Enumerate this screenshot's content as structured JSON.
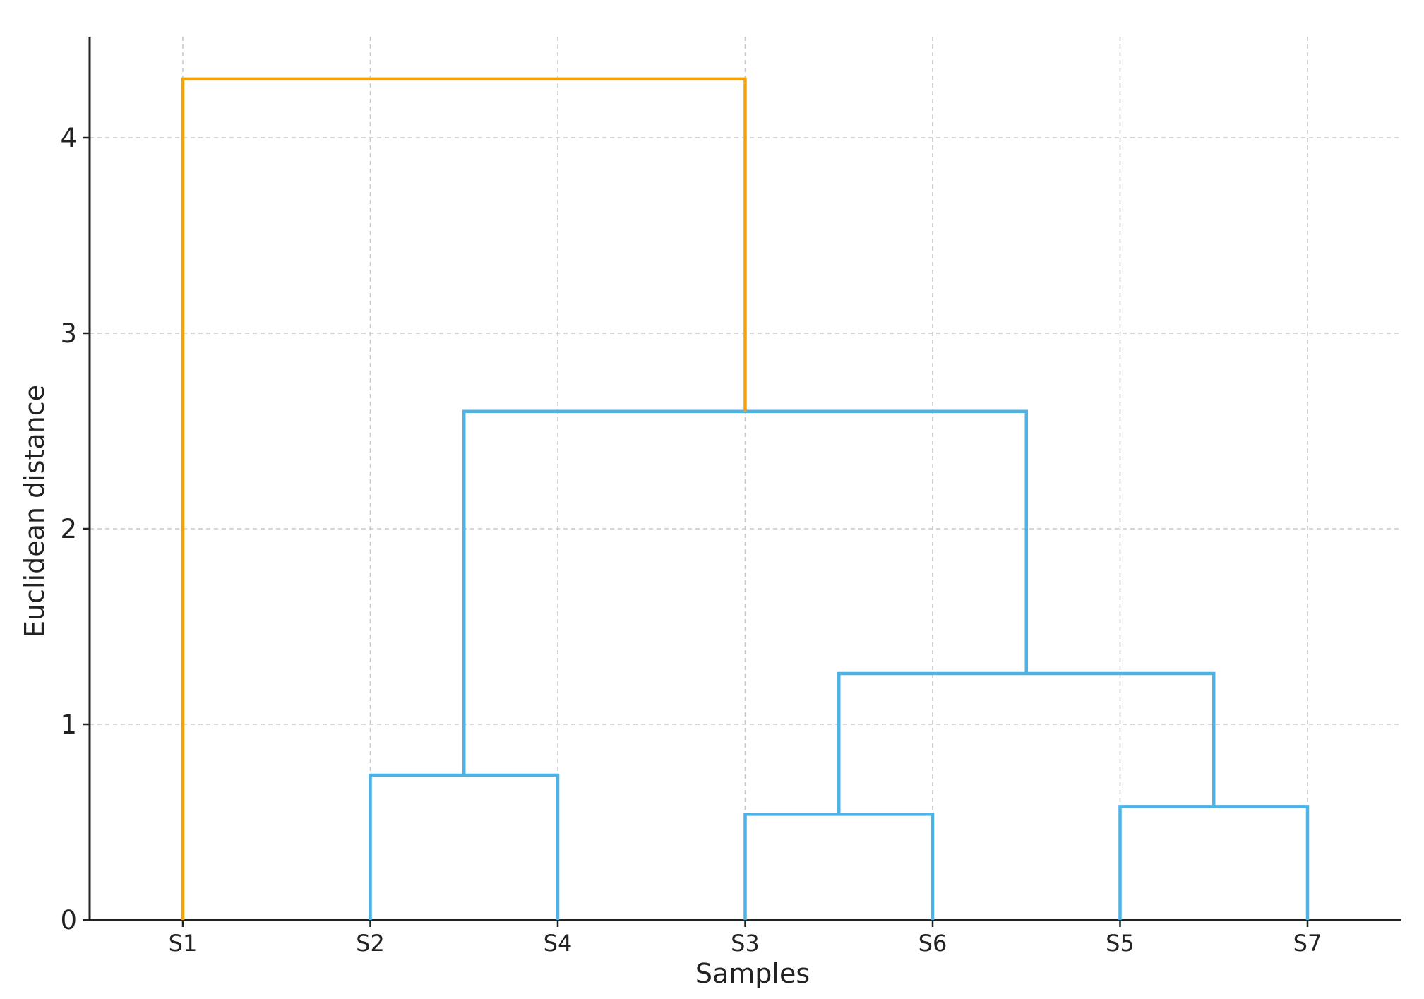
{
  "chart_data": {
    "type": "dendrogram",
    "title": "",
    "xlabel": "Samples",
    "ylabel": "Euclidean distance",
    "ylim": [
      0,
      4.5
    ],
    "yticks": [
      0,
      1,
      2,
      3,
      4
    ],
    "leaf_order": [
      "S1",
      "S2",
      "S4",
      "S3",
      "S6",
      "S5",
      "S7"
    ],
    "grid": true,
    "links": [
      {
        "name": "S2-S4",
        "left": "S2",
        "right": "S4",
        "height": 0.74,
        "color": "#4db3e6"
      },
      {
        "name": "S3-S6",
        "left": "S3",
        "right": "S6",
        "height": 0.54,
        "color": "#4db3e6"
      },
      {
        "name": "S5-S7",
        "left": "S5",
        "right": "S7",
        "height": 0.58,
        "color": "#4db3e6"
      },
      {
        "name": "S3S6-S5S7",
        "left": "S3-S6",
        "right": "S5-S7",
        "height": 1.26,
        "color": "#4db3e6"
      },
      {
        "name": "S2S4-S3S6S5S7",
        "left": "S2-S4",
        "right": "S3S6-S5S7",
        "height": 2.6,
        "color": "#4db3e6"
      },
      {
        "name": "root",
        "left": "S1",
        "right": "S2S4-S3S6S5S7",
        "height": 4.3,
        "color": "#f0a30a"
      }
    ]
  }
}
